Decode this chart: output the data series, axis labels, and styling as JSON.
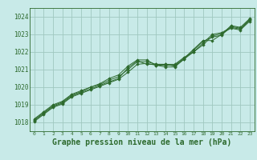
{
  "background_color": "#c8eae8",
  "grid_color": "#a0c8c0",
  "line_color": "#2d6a2d",
  "title": "Graphe pression niveau de la mer (hPa)",
  "title_fontsize": 7,
  "xlim": [
    -0.5,
    23.5
  ],
  "ylim": [
    1017.5,
    1024.5
  ],
  "yticks": [
    1018,
    1019,
    1020,
    1021,
    1022,
    1023,
    1024
  ],
  "xticks": [
    0,
    1,
    2,
    3,
    4,
    5,
    6,
    7,
    8,
    9,
    10,
    11,
    12,
    13,
    14,
    15,
    16,
    17,
    18,
    19,
    20,
    21,
    22,
    23
  ],
  "series": [
    [
      1018.1,
      1018.5,
      1018.9,
      1019.1,
      1019.5,
      1019.7,
      1019.9,
      1020.1,
      1020.3,
      1020.5,
      1021.1,
      1021.5,
      1021.3,
      1021.3,
      1021.3,
      1021.3,
      1021.7,
      1022.0,
      1022.5,
      1023.0,
      1023.1,
      1023.4,
      1023.3,
      1023.8
    ],
    [
      1018.2,
      1018.6,
      1019.0,
      1019.2,
      1019.6,
      1019.8,
      1020.0,
      1020.2,
      1020.5,
      1020.7,
      1021.2,
      1021.55,
      1021.55,
      1021.25,
      1021.25,
      1021.25,
      1021.65,
      1022.15,
      1022.65,
      1022.65,
      1023.0,
      1023.5,
      1023.4,
      1023.9
    ],
    [
      1018.15,
      1018.55,
      1018.95,
      1019.15,
      1019.55,
      1019.75,
      1020.0,
      1020.15,
      1020.4,
      1020.6,
      1021.0,
      1021.45,
      1021.45,
      1021.3,
      1021.3,
      1021.2,
      1021.6,
      1022.1,
      1022.6,
      1022.85,
      1022.95,
      1023.45,
      1023.35,
      1023.85
    ],
    [
      1018.05,
      1018.45,
      1018.85,
      1019.05,
      1019.45,
      1019.65,
      1019.85,
      1020.05,
      1020.25,
      1020.45,
      1020.85,
      1021.3,
      1021.35,
      1021.25,
      1021.15,
      1021.15,
      1021.6,
      1022.0,
      1022.4,
      1022.9,
      1023.05,
      1023.35,
      1023.25,
      1023.75
    ]
  ]
}
